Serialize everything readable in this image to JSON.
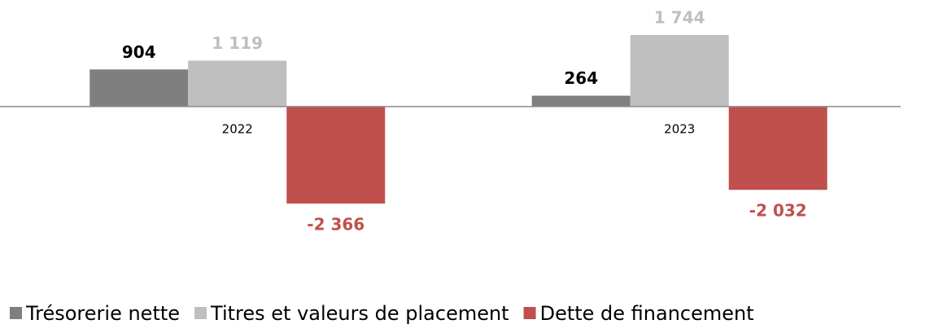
{
  "chart_data": {
    "type": "bar",
    "categories": [
      "2022",
      "2023"
    ],
    "series": [
      {
        "name": "Trésorerie nette",
        "color": "#7f7f7f",
        "values": [
          904,
          264
        ],
        "value_labels": [
          "904",
          "264"
        ],
        "label_color": "#000000"
      },
      {
        "name": "Titres et valeurs de placement",
        "color": "#bfbfbf",
        "values": [
          1119,
          1744
        ],
        "value_labels": [
          "1 119",
          "1 744"
        ],
        "label_color": "#bfbfbf"
      },
      {
        "name": "Dette de financement",
        "color": "#c0504d",
        "values": [
          -2366,
          -2032
        ],
        "value_labels": [
          "-2 366",
          "-2 032"
        ],
        "label_color": "#c0504d"
      }
    ],
    "legend": "bottom"
  }
}
